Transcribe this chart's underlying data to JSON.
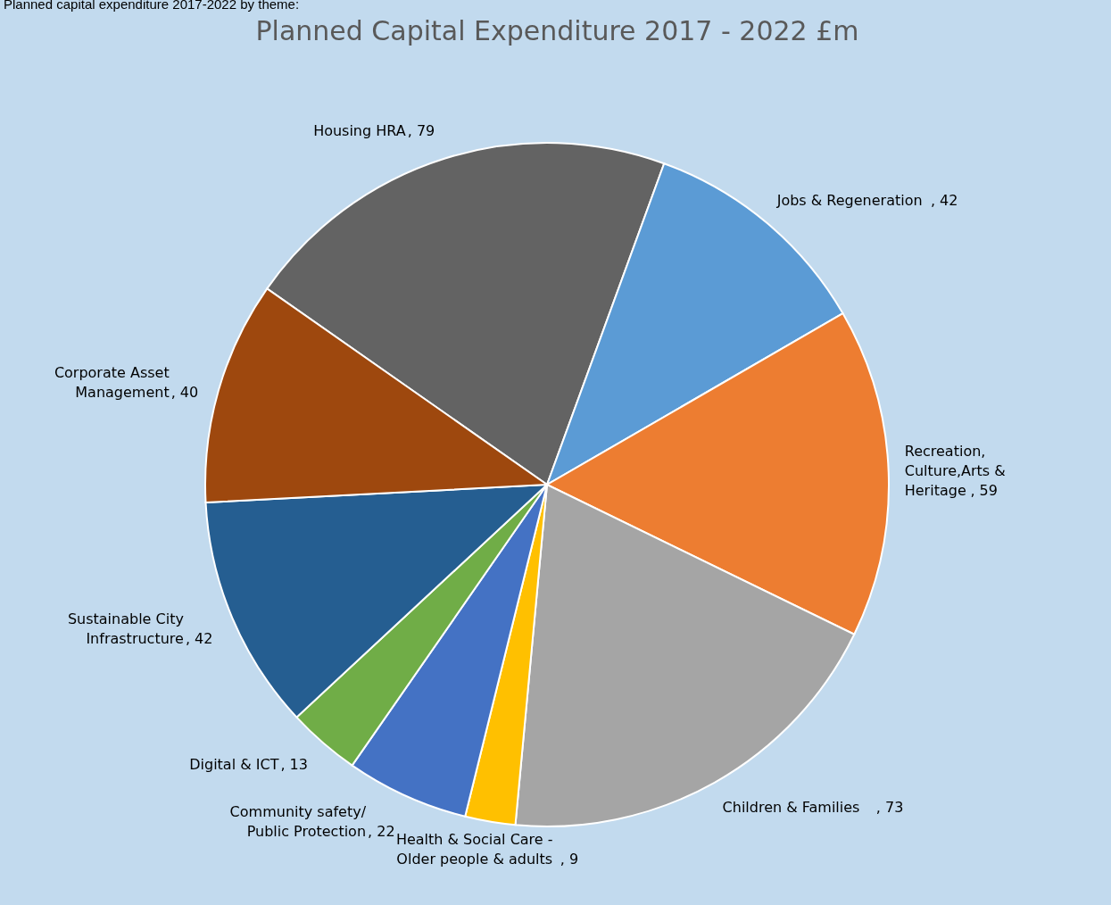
{
  "chart_data": {
    "type": "pie",
    "title": "Planned Capital Expenditure 2017 - 2022 £m",
    "annotations": [
      "Planned capital expenditure 2017-2022 by theme:"
    ],
    "categories": [
      "Housing HRA",
      "Jobs & Regeneration",
      "Recreation, Culture,Arts & Heritage",
      "Children & Families",
      "Health & Social Care - Older people & adults",
      "Community safety/ Public Protection",
      "Digital & ICT",
      "Sustainable City Infrastructure",
      "Corporate Asset Management"
    ],
    "values": [
      79,
      42,
      59,
      73,
      9,
      22,
      13,
      42,
      40
    ],
    "colors": [
      "#636363",
      "#5b9bd5",
      "#ed7d31",
      "#a5a5a5",
      "#ffc000",
      "#4472c4",
      "#70ad47",
      "#255e91",
      "#9e480e"
    ],
    "value_labels": [
      ", 79",
      ", 42",
      ", 59",
      ", 73",
      ", 9",
      ", 22",
      ", 13",
      ", 42",
      ", 40"
    ]
  }
}
